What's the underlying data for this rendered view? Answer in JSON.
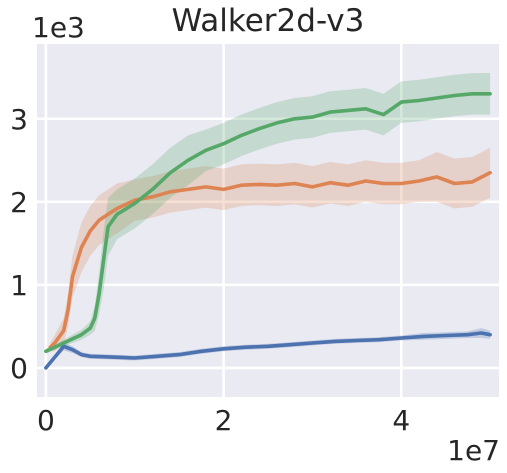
{
  "chart_data": {
    "type": "line",
    "title": "Walker2d-v3",
    "xlabel": "",
    "ylabel": "",
    "x_offset_label": "1e7",
    "y_offset_label": "1e3",
    "xlim": [
      -0.1,
      5.1
    ],
    "ylim": [
      -0.35,
      3.9
    ],
    "x_ticks": [
      0,
      2,
      4
    ],
    "x_tick_labels": [
      "0",
      "2",
      "4"
    ],
    "y_ticks": [
      0,
      1,
      2,
      3
    ],
    "y_tick_labels": [
      "0",
      "1",
      "2",
      "3"
    ],
    "grid": true,
    "legend": "none",
    "background_color": "#EAEAF2",
    "series": [
      {
        "color": "#4C72B0",
        "x": [
          0.0,
          0.1,
          0.2,
          0.3,
          0.4,
          0.5,
          0.75,
          1.0,
          1.25,
          1.5,
          1.75,
          2.0,
          2.25,
          2.5,
          2.75,
          3.0,
          3.25,
          3.5,
          3.75,
          4.0,
          4.25,
          4.5,
          4.75,
          4.9,
          5.0
        ],
        "y": [
          0.0,
          0.13,
          0.26,
          0.22,
          0.16,
          0.14,
          0.13,
          0.12,
          0.14,
          0.16,
          0.2,
          0.23,
          0.25,
          0.26,
          0.28,
          0.3,
          0.32,
          0.33,
          0.34,
          0.36,
          0.38,
          0.39,
          0.4,
          0.42,
          0.4
        ],
        "band": [
          0.02,
          0.03,
          0.05,
          0.04,
          0.03,
          0.03,
          0.03,
          0.03,
          0.03,
          0.03,
          0.03,
          0.03,
          0.03,
          0.03,
          0.03,
          0.03,
          0.03,
          0.03,
          0.03,
          0.03,
          0.04,
          0.04,
          0.04,
          0.06,
          0.05
        ]
      },
      {
        "color": "#DD8452",
        "x": [
          0.05,
          0.1,
          0.2,
          0.25,
          0.3,
          0.4,
          0.5,
          0.6,
          0.8,
          1.0,
          1.2,
          1.4,
          1.6,
          1.8,
          2.0,
          2.2,
          2.4,
          2.6,
          2.8,
          3.0,
          3.2,
          3.4,
          3.6,
          3.8,
          4.0,
          4.2,
          4.4,
          4.6,
          4.8,
          5.0
        ],
        "y": [
          0.25,
          0.3,
          0.45,
          0.7,
          1.1,
          1.45,
          1.65,
          1.78,
          1.92,
          2.02,
          2.06,
          2.12,
          2.15,
          2.18,
          2.15,
          2.2,
          2.21,
          2.2,
          2.22,
          2.18,
          2.23,
          2.2,
          2.25,
          2.22,
          2.22,
          2.25,
          2.3,
          2.22,
          2.24,
          2.35
        ],
        "band": [
          0.05,
          0.1,
          0.15,
          0.2,
          0.25,
          0.3,
          0.3,
          0.3,
          0.3,
          0.25,
          0.25,
          0.25,
          0.25,
          0.25,
          0.25,
          0.25,
          0.25,
          0.25,
          0.25,
          0.25,
          0.25,
          0.25,
          0.25,
          0.25,
          0.25,
          0.25,
          0.3,
          0.3,
          0.3,
          0.3
        ]
      },
      {
        "color": "#55A868",
        "x": [
          0.0,
          0.1,
          0.2,
          0.3,
          0.4,
          0.5,
          0.55,
          0.6,
          0.65,
          0.7,
          0.8,
          1.0,
          1.2,
          1.4,
          1.6,
          1.8,
          2.0,
          2.2,
          2.4,
          2.6,
          2.8,
          3.0,
          3.2,
          3.4,
          3.6,
          3.8,
          4.0,
          4.2,
          4.4,
          4.6,
          4.8,
          5.0
        ],
        "y": [
          0.2,
          0.25,
          0.3,
          0.35,
          0.4,
          0.48,
          0.6,
          0.9,
          1.3,
          1.7,
          1.85,
          1.98,
          2.15,
          2.35,
          2.5,
          2.62,
          2.7,
          2.8,
          2.88,
          2.95,
          3.0,
          3.02,
          3.08,
          3.1,
          3.12,
          3.05,
          3.2,
          3.22,
          3.25,
          3.28,
          3.3,
          3.3
        ],
        "band": [
          0.03,
          0.03,
          0.04,
          0.05,
          0.06,
          0.08,
          0.15,
          0.25,
          0.35,
          0.35,
          0.3,
          0.3,
          0.3,
          0.3,
          0.3,
          0.25,
          0.25,
          0.25,
          0.25,
          0.25,
          0.25,
          0.25,
          0.25,
          0.25,
          0.25,
          0.25,
          0.25,
          0.25,
          0.25,
          0.25,
          0.25,
          0.25
        ]
      }
    ]
  }
}
